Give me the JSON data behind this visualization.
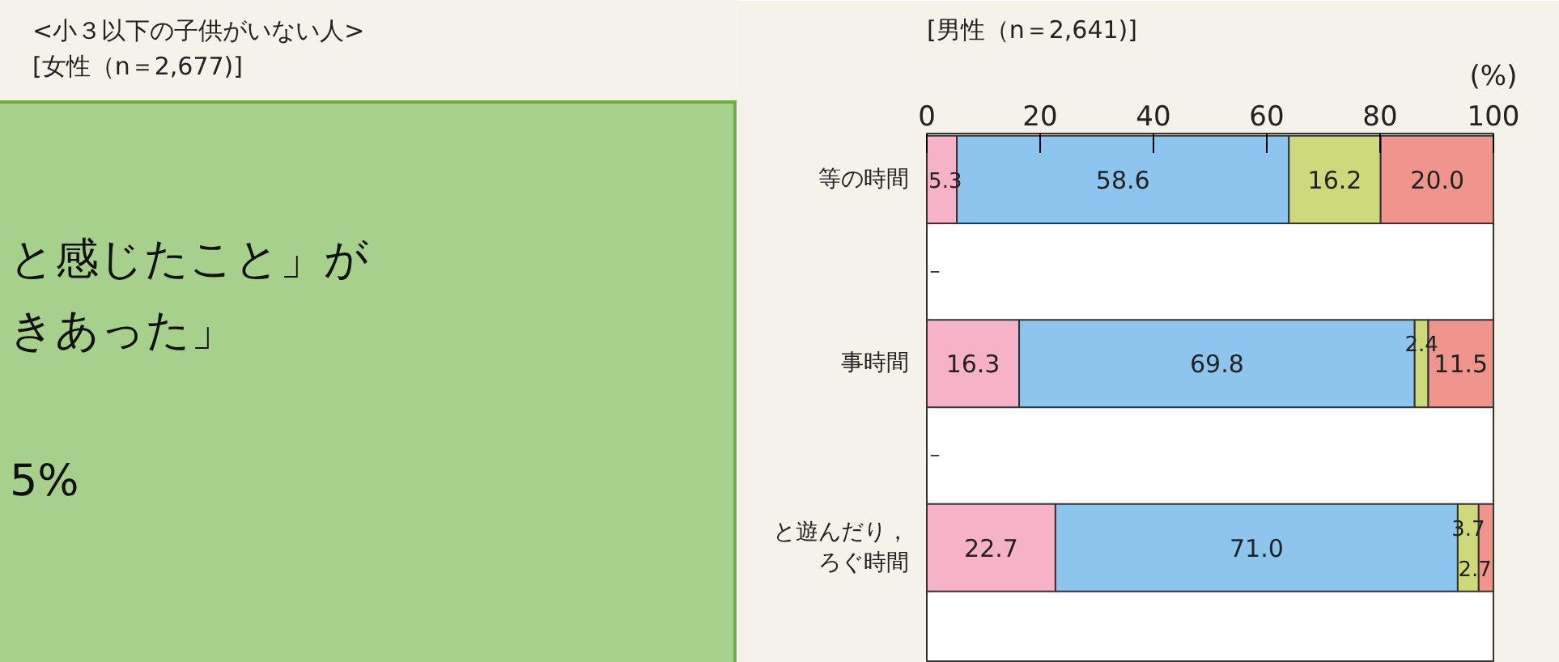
{
  "chart_data": {
    "type": "bar",
    "orientation": "horizontal",
    "stacked": true,
    "title": "<小３以下の子供がいない人>",
    "subtitle": "[女性（n＝2,677)]",
    "xlabel": "(%)",
    "annotations": [
      "[男性（n＝2,641)]",
      "と感じたこと」が",
      "きあった」",
      "5%"
    ],
    "categories": [
      "等の時間",
      null,
      "事時間",
      null,
      "と遊んだり，ろぐ時間",
      null
    ],
    "xlim": [
      0,
      100
    ],
    "xticks": [
      0,
      20,
      40,
      60,
      80,
      100
    ],
    "grid": false,
    "series": [
      {
        "color": "#f6b3c7",
        "values": [
          5.3,
          null,
          16.3,
          null,
          22.7,
          null
        ],
        "value_labels": [
          "5.3",
          "–",
          "16.3",
          "–",
          "22.7",
          null
        ]
      },
      {
        "color": "#8ec5ee",
        "values": [
          58.6,
          null,
          69.8,
          null,
          71.0,
          null
        ],
        "value_labels": [
          "58.6",
          null,
          "69.8",
          null,
          "71.0",
          null
        ]
      },
      {
        "color": "#cdd97a",
        "values": [
          16.2,
          null,
          2.4,
          null,
          3.7,
          null
        ],
        "value_labels": [
          "16.2",
          null,
          "2.4",
          null,
          "3.7",
          null
        ]
      },
      {
        "color": "#f0958e",
        "values": [
          20.0,
          null,
          11.5,
          null,
          2.7,
          null
        ],
        "value_labels": [
          "20.0",
          null,
          "11.5",
          null,
          "2.7",
          null
        ]
      }
    ]
  }
}
